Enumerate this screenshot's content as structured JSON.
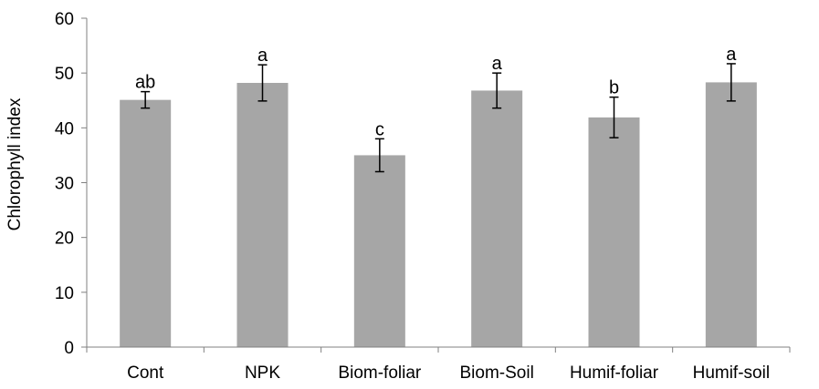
{
  "chart_data": {
    "type": "bar",
    "title": "",
    "xlabel": "",
    "ylabel": "Chlorophyll index",
    "ylim": [
      0,
      60
    ],
    "yticks": [
      0,
      10,
      20,
      30,
      40,
      50,
      60
    ],
    "grid": false,
    "legend": "none",
    "bar_color": "#a6a6a6",
    "categories": [
      "Cont",
      "NPK",
      "Biom-foliar",
      "Biom-Soil",
      "Humif-foliar",
      "Humif-soil"
    ],
    "values": [
      45.1,
      48.2,
      35.0,
      46.8,
      41.9,
      48.3
    ],
    "error": [
      1.5,
      3.3,
      3.0,
      3.2,
      3.7,
      3.4
    ],
    "letters": [
      "ab",
      "a",
      "c",
      "a",
      "b",
      "a"
    ]
  }
}
